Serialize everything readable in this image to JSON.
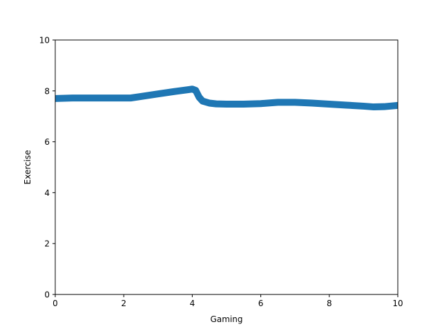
{
  "chart_data": {
    "type": "line",
    "title": "",
    "xlabel": "Gaming",
    "ylabel": "Exercise",
    "xlim": [
      0,
      10
    ],
    "ylim": [
      0,
      10
    ],
    "xticks": [
      0,
      2,
      4,
      6,
      8,
      10
    ],
    "yticks": [
      0,
      2,
      4,
      6,
      8,
      10
    ],
    "grid": false,
    "legend": "none",
    "series": [
      {
        "color": "#1f77b4",
        "x": [
          0,
          0.5,
          1.0,
          1.5,
          2.0,
          2.2,
          2.5,
          3.0,
          3.5,
          3.9,
          4.0,
          4.1,
          4.2,
          4.3,
          4.5,
          4.7,
          5.0,
          5.5,
          6.0,
          6.5,
          7.0,
          7.5,
          8.0,
          8.5,
          9.0,
          9.3,
          9.6,
          10.0
        ],
        "y": [
          7.7,
          7.72,
          7.72,
          7.72,
          7.72,
          7.72,
          7.78,
          7.88,
          7.98,
          8.05,
          8.07,
          8.02,
          7.75,
          7.6,
          7.52,
          7.49,
          7.48,
          7.48,
          7.5,
          7.55,
          7.55,
          7.52,
          7.48,
          7.44,
          7.4,
          7.37,
          7.38,
          7.43
        ]
      }
    ]
  }
}
